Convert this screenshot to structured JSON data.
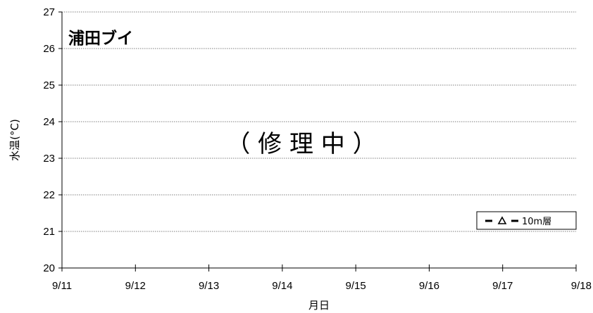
{
  "chart_data": {
    "type": "line",
    "title": "浦田ブイ",
    "status_text": "（ 修 理 中 ）",
    "xlabel": "月日",
    "ylabel": "水温(°C)",
    "x_categories": [
      "9/11",
      "9/12",
      "9/13",
      "9/14",
      "9/15",
      "9/16",
      "9/17",
      "9/18"
    ],
    "y_ticks": [
      "20",
      "21",
      "22",
      "23",
      "24",
      "25",
      "26",
      "27"
    ],
    "ylim": [
      20,
      27
    ],
    "grid": "horizontal dotted",
    "legend_position": "lower-right",
    "series": [
      {
        "name": "10m層",
        "values": [],
        "marker": "triangle-open",
        "line": "dashed",
        "color": "#000000"
      }
    ]
  }
}
